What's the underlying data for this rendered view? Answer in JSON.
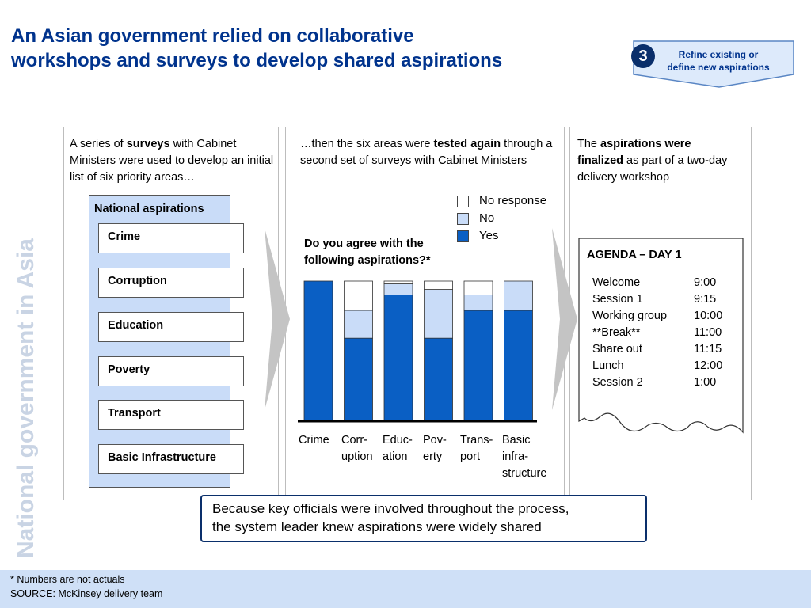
{
  "title": {
    "line1": "An Asian government relied on collaborative",
    "line2": "workshops and surveys to develop shared aspirations"
  },
  "badge": {
    "number": "3",
    "text_line1": "Refine existing or",
    "text_line2": "define new aspirations"
  },
  "watermark": "National government in Asia",
  "panel1": {
    "text_pre": "A series of ",
    "text_bold": "surveys",
    "text_post": " with Cabinet Ministers were used to develop an initial list of six priority areas…",
    "list_title": "National aspirations",
    "items": [
      "Crime",
      "Corruption",
      "Education",
      "Poverty",
      "Transport",
      "Basic Infrastructure"
    ]
  },
  "panel2": {
    "text_pre": "…then the six areas were ",
    "text_bold": "tested again",
    "text_post": " through a second set of surveys with Cabinet Ministers",
    "question_line1": "Do you agree with the",
    "question_line2": "following aspirations?*"
  },
  "chart_data": {
    "type": "bar",
    "stacked": true,
    "categories": [
      "Crime",
      "Corruption",
      "Education",
      "Poverty",
      "Transport",
      "Basic infrastructure"
    ],
    "category_labels": [
      [
        "Crime"
      ],
      [
        "Corr-",
        "uption"
      ],
      [
        "Educ-",
        "ation"
      ],
      [
        "Pov-",
        "erty"
      ],
      [
        "Trans-",
        "port"
      ],
      [
        "Basic",
        "infra-",
        "structure"
      ]
    ],
    "series": [
      {
        "name": "Yes",
        "color": "#0a5fc4",
        "values": [
          100,
          59,
          90,
          59,
          79,
          79
        ]
      },
      {
        "name": "No",
        "color": "#c9dcf8",
        "values": [
          0,
          20,
          8,
          35,
          11,
          21
        ]
      },
      {
        "name": "No response",
        "color": "#ffffff",
        "values": [
          0,
          21,
          2,
          6,
          10,
          0
        ]
      }
    ],
    "legend": [
      "No response",
      "No",
      "Yes"
    ],
    "ylim": [
      0,
      100
    ]
  },
  "panel3": {
    "text_pre": "The ",
    "text_bold": "aspirations were finalized",
    "text_post": " as part of a two-day delivery workshop",
    "agenda_title": "AGENDA – DAY 1",
    "agenda": [
      {
        "item": "Welcome",
        "time": "9:00"
      },
      {
        "item": "Session 1",
        "time": "9:15"
      },
      {
        "item": "Working group",
        "time": "10:00"
      },
      {
        "item": "**Break**",
        "time": "11:00"
      },
      {
        "item": "Share out",
        "time": "11:15"
      },
      {
        "item": "Lunch",
        "time": "12:00"
      },
      {
        "item": "Session 2",
        "time": "1:00"
      }
    ]
  },
  "conclusion": {
    "line1": "Because key officials were involved throughout the process,",
    "line2": "the system leader knew aspirations were widely shared"
  },
  "footer": {
    "note": "* Numbers are not actuals",
    "source": "SOURCE: McKinsey delivery team"
  },
  "colors": {
    "title_blue": "#00338d",
    "dark_navy": "#0a2f6b",
    "bar_blue": "#0a5fc4",
    "light_blue": "#c9dcf8",
    "footer_bg": "#cfe0f7"
  }
}
